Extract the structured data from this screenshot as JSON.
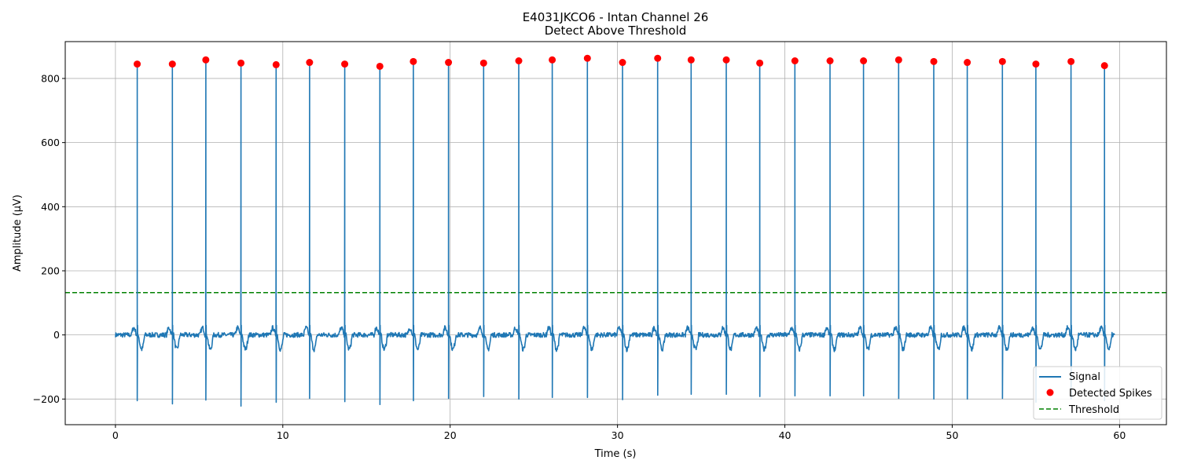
{
  "chart_data": {
    "type": "line",
    "title": "E4031JKCO6 - Intan Channel 26",
    "subtitle": "Detect Above Threshold",
    "xlabel": "Time (s)",
    "ylabel": "Amplitude (µV)",
    "xlim": [
      -3,
      62.8
    ],
    "ylim": [
      -280,
      915
    ],
    "x_ticks": [
      0,
      10,
      20,
      30,
      40,
      50,
      60
    ],
    "x_tick_labels": [
      "0",
      "10",
      "20",
      "30",
      "40",
      "50",
      "60"
    ],
    "y_ticks": [
      -200,
      0,
      200,
      400,
      600,
      800
    ],
    "y_tick_labels": [
      "−200",
      "0",
      "200",
      "400",
      "600",
      "800"
    ],
    "grid": true,
    "legend_position": "bottom-right",
    "signal_range": [
      0,
      59.7
    ],
    "baseline_noise": 15,
    "threshold": 132,
    "series": [
      {
        "name": "Signal",
        "color": "#1f77b4",
        "kind": "line",
        "spike_times": [
          1.3,
          3.4,
          5.4,
          7.5,
          9.6,
          11.6,
          13.7,
          15.8,
          17.8,
          19.9,
          22.0,
          24.1,
          26.1,
          28.2,
          30.3,
          32.4,
          34.4,
          36.5,
          38.5,
          40.6,
          42.7,
          44.7,
          46.8,
          48.9,
          50.9,
          53.0,
          55.0,
          57.1,
          59.1
        ],
        "spike_troughs": [
          -205,
          -215,
          -203,
          -222,
          -210,
          -198,
          -208,
          -217,
          -205,
          -198,
          -192,
          -200,
          -195,
          -195,
          -202,
          -188,
          -185,
          -185,
          -192,
          -190,
          -190,
          -190,
          -198,
          -200,
          -200,
          -198,
          -210,
          -200,
          -205
        ]
      },
      {
        "name": "Detected Spikes",
        "color": "#ff0000",
        "kind": "marker",
        "x": [
          1.3,
          3.4,
          5.4,
          7.5,
          9.6,
          11.6,
          13.7,
          15.8,
          17.8,
          19.9,
          22.0,
          24.1,
          26.1,
          28.2,
          30.3,
          32.4,
          34.4,
          36.5,
          38.5,
          40.6,
          42.7,
          44.7,
          46.8,
          48.9,
          50.9,
          53.0,
          55.0,
          57.1,
          59.1
        ],
        "values": [
          845,
          845,
          858,
          848,
          843,
          850,
          845,
          838,
          853,
          850,
          848,
          855,
          858,
          863,
          850,
          863,
          858,
          858,
          848,
          855,
          855,
          855,
          858,
          853,
          850,
          853,
          845,
          853,
          840
        ]
      },
      {
        "name": "Threshold",
        "color": "#008000",
        "kind": "hline",
        "value": 132
      }
    ]
  }
}
